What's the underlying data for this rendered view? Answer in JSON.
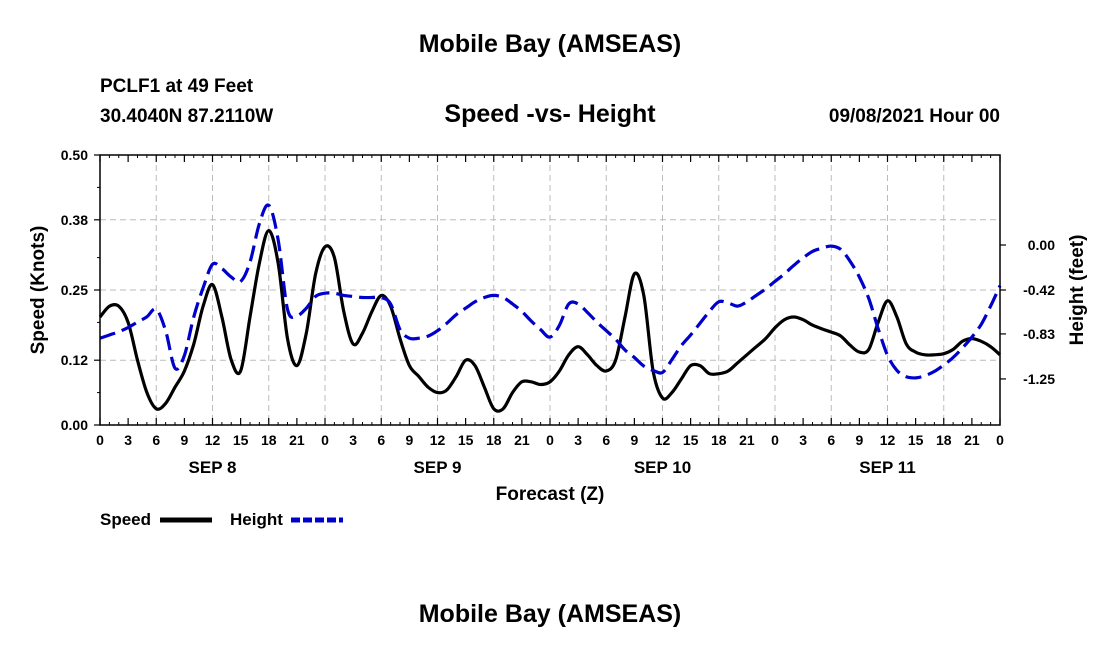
{
  "header": {
    "title": "Mobile Bay (AMSEAS)",
    "station": "PCLF1 at 49 Feet",
    "coordinates": "30.4040N  87.2110W",
    "chart_title": "Speed -vs- Height",
    "datetime": "09/08/2021 Hour 00"
  },
  "footer": {
    "title": "Mobile Bay (AMSEAS)"
  },
  "chart_data": {
    "type": "line",
    "title": "Speed -vs- Height",
    "xlabel": "Forecast (Z)",
    "ylabel_left": "Speed (Knots)",
    "ylabel_right": "Height (feet)",
    "x_unit": "hours from 09/08/2021 00Z",
    "xlim": [
      0,
      96
    ],
    "x_ticks": [
      0,
      3,
      6,
      9,
      12,
      15,
      18,
      21,
      24,
      27,
      30,
      33,
      36,
      39,
      42,
      45,
      48,
      51,
      54,
      57,
      60,
      63,
      66,
      69,
      72,
      75,
      78,
      81,
      84,
      87,
      90,
      93,
      96
    ],
    "x_tick_labels": [
      "0",
      "3",
      "6",
      "9",
      "12",
      "15",
      "18",
      "21",
      "0",
      "3",
      "6",
      "9",
      "12",
      "15",
      "18",
      "21",
      "0",
      "3",
      "6",
      "9",
      "12",
      "15",
      "18",
      "21",
      "0",
      "3",
      "6",
      "9",
      "12",
      "15",
      "18",
      "21",
      "0"
    ],
    "day_labels": [
      {
        "label": "SEP 8",
        "x": 12
      },
      {
        "label": "SEP 9",
        "x": 36
      },
      {
        "label": "SEP 10",
        "x": 60
      },
      {
        "label": "SEP 11",
        "x": 84
      }
    ],
    "ylim_left": [
      0,
      0.5
    ],
    "yticks_left": [
      0.0,
      0.12,
      0.25,
      0.38,
      0.5
    ],
    "ytick_labels_left": [
      "0.00",
      "0.12",
      "0.25",
      "0.38",
      "0.50"
    ],
    "ylim_right": [
      -1.68,
      0.84
    ],
    "yticks_right": [
      0.0,
      -0.42,
      -0.83,
      -1.25
    ],
    "ytick_labels_right": [
      "0.00",
      "-0.42",
      "-0.83",
      "-1.25"
    ],
    "grid": true,
    "legend_position": "bottom-left",
    "series": [
      {
        "name": "Speed",
        "axis": "left",
        "color": "#000000",
        "style": "solid",
        "x": [
          0,
          1,
          2,
          3,
          4,
          5,
          6,
          7,
          8,
          9,
          10,
          11,
          12,
          13,
          14,
          15,
          16,
          17,
          18,
          19,
          20,
          21,
          22,
          23,
          24,
          25,
          26,
          27,
          28,
          29,
          30,
          31,
          32,
          33,
          34,
          35,
          36,
          37,
          38,
          39,
          40,
          41,
          42,
          43,
          44,
          45,
          46,
          47,
          48,
          49,
          50,
          51,
          52,
          53,
          54,
          55,
          56,
          57,
          58,
          59,
          60,
          61,
          62,
          63,
          64,
          65,
          66,
          67,
          68,
          69,
          70,
          71,
          72,
          73,
          74,
          75,
          76,
          77,
          78,
          79,
          80,
          81,
          82,
          83,
          84,
          85,
          86,
          87,
          88,
          89,
          90,
          91,
          92,
          93,
          94,
          95,
          96
        ],
        "y": [
          0.2,
          0.22,
          0.22,
          0.19,
          0.12,
          0.06,
          0.03,
          0.04,
          0.07,
          0.1,
          0.15,
          0.22,
          0.26,
          0.2,
          0.12,
          0.1,
          0.2,
          0.3,
          0.36,
          0.3,
          0.16,
          0.11,
          0.17,
          0.28,
          0.33,
          0.31,
          0.21,
          0.15,
          0.17,
          0.21,
          0.24,
          0.22,
          0.16,
          0.11,
          0.09,
          0.07,
          0.06,
          0.065,
          0.09,
          0.12,
          0.11,
          0.07,
          0.03,
          0.03,
          0.06,
          0.08,
          0.08,
          0.075,
          0.08,
          0.1,
          0.13,
          0.145,
          0.13,
          0.11,
          0.1,
          0.12,
          0.2,
          0.28,
          0.24,
          0.1,
          0.05,
          0.06,
          0.085,
          0.11,
          0.11,
          0.095,
          0.095,
          0.1,
          0.115,
          0.13,
          0.145,
          0.16,
          0.18,
          0.195,
          0.2,
          0.195,
          0.185,
          0.178,
          0.172,
          0.165,
          0.148,
          0.135,
          0.14,
          0.19,
          0.23,
          0.2,
          0.15,
          0.135,
          0.13,
          0.13,
          0.132,
          0.14,
          0.155,
          0.16,
          0.155,
          0.145,
          0.13
        ]
      },
      {
        "name": "Height",
        "axis": "right",
        "color": "#0000cc",
        "style": "dashed",
        "x": [
          0,
          1,
          2,
          3,
          4,
          5,
          6,
          7,
          8,
          9,
          10,
          11,
          12,
          13,
          14,
          15,
          16,
          17,
          18,
          19,
          20,
          21,
          22,
          23,
          24,
          25,
          26,
          27,
          28,
          29,
          30,
          31,
          32,
          33,
          34,
          35,
          36,
          37,
          38,
          39,
          40,
          41,
          42,
          43,
          44,
          45,
          46,
          47,
          48,
          49,
          50,
          51,
          52,
          53,
          54,
          55,
          56,
          57,
          58,
          59,
          60,
          61,
          62,
          63,
          64,
          65,
          66,
          67,
          68,
          69,
          70,
          71,
          72,
          73,
          74,
          75,
          76,
          77,
          78,
          79,
          80,
          81,
          82,
          83,
          84,
          85,
          86,
          87,
          88,
          89,
          90,
          91,
          92,
          93,
          94,
          95,
          96
        ],
        "y": [
          -0.87,
          -0.84,
          -0.81,
          -0.77,
          -0.72,
          -0.67,
          -0.6,
          -0.8,
          -1.15,
          -1.03,
          -0.67,
          -0.4,
          -0.18,
          -0.22,
          -0.3,
          -0.34,
          -0.16,
          0.2,
          0.37,
          0.05,
          -0.6,
          -0.66,
          -0.59,
          -0.48,
          -0.45,
          -0.45,
          -0.47,
          -0.48,
          -0.49,
          -0.49,
          -0.49,
          -0.55,
          -0.79,
          -0.87,
          -0.87,
          -0.85,
          -0.8,
          -0.73,
          -0.65,
          -0.59,
          -0.53,
          -0.49,
          -0.47,
          -0.49,
          -0.55,
          -0.62,
          -0.71,
          -0.79,
          -0.86,
          -0.75,
          -0.55,
          -0.55,
          -0.63,
          -0.72,
          -0.8,
          -0.88,
          -0.98,
          -1.05,
          -1.13,
          -1.17,
          -1.19,
          -1.07,
          -0.94,
          -0.84,
          -0.73,
          -0.62,
          -0.53,
          -0.54,
          -0.57,
          -0.53,
          -0.47,
          -0.41,
          -0.34,
          -0.27,
          -0.19,
          -0.12,
          -0.06,
          -0.03,
          -0.01,
          -0.04,
          -0.15,
          -0.3,
          -0.5,
          -0.78,
          -1.03,
          -1.17,
          -1.23,
          -1.24,
          -1.22,
          -1.18,
          -1.12,
          -1.05,
          -0.96,
          -0.86,
          -0.74,
          -0.57,
          -0.38
        ]
      }
    ],
    "legend": [
      {
        "label": "Speed",
        "color": "#000000",
        "style": "solid"
      },
      {
        "label": "Height",
        "color": "#0000cc",
        "style": "dashed"
      }
    ]
  }
}
